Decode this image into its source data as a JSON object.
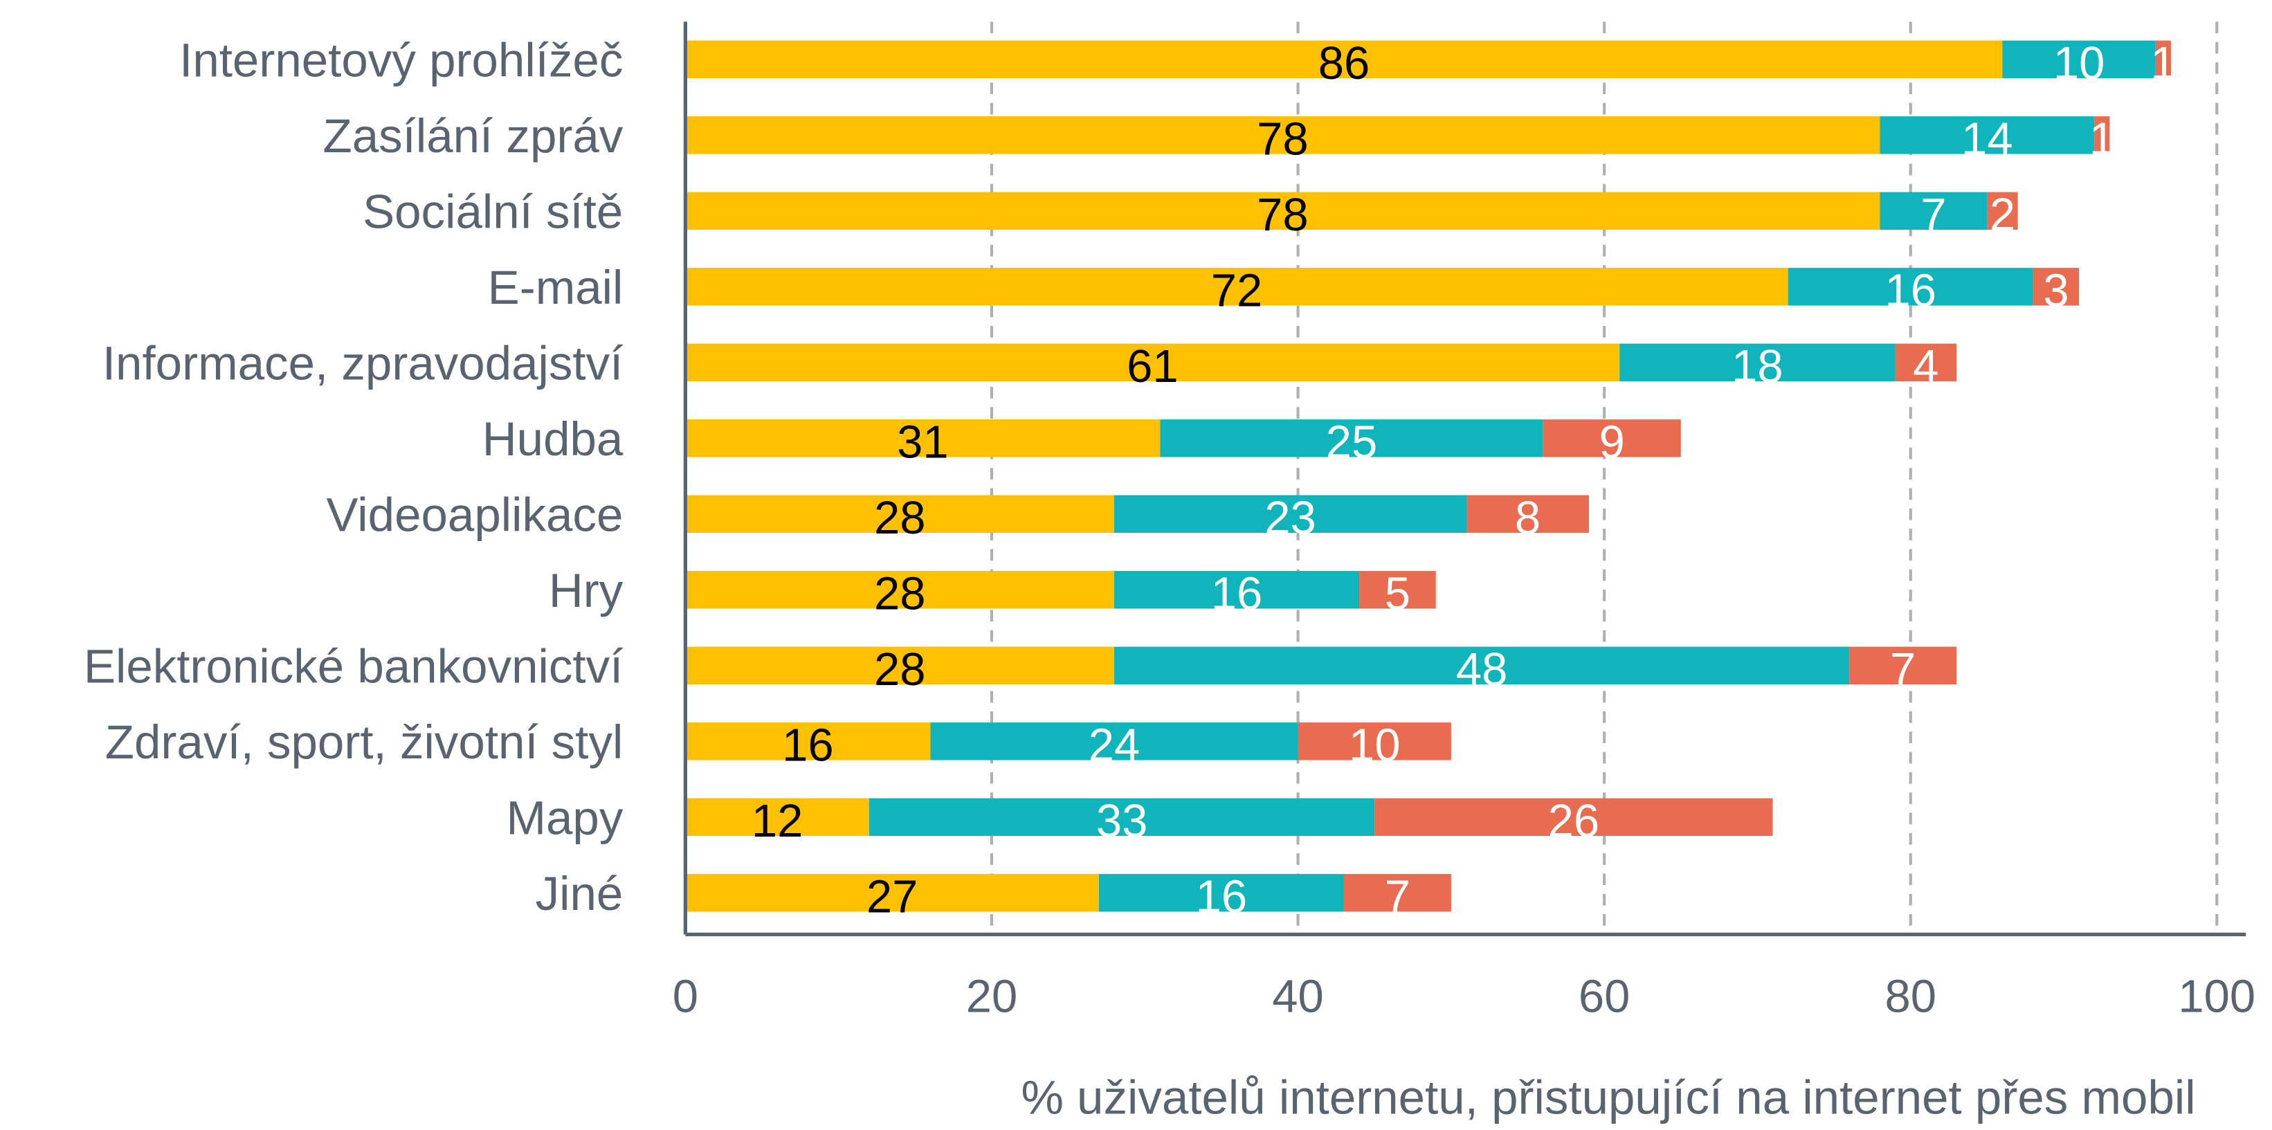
{
  "chart_data": {
    "type": "stacked_barh",
    "xlabel": "% uživatelů internetu, přistupující na internet přes mobil",
    "categories": [
      "Internetový prohlížeč",
      "Zasílání zpráv",
      "Sociální sítě",
      "E-mail",
      "Informace, zpravodajství",
      "Hudba",
      "Videoaplikace",
      "Hry",
      "Elektronické bankovnictví",
      "Zdraví, sport, životní styl",
      "Mapy",
      "Jiné"
    ],
    "series": [
      {
        "color": "#ffc000",
        "label_color": "#000000",
        "values": [
          86,
          78,
          78,
          72,
          61,
          31,
          28,
          28,
          28,
          16,
          12,
          27
        ]
      },
      {
        "color": "#10b5bc",
        "label_color": "#ffffff",
        "values": [
          10,
          14,
          7,
          16,
          18,
          25,
          23,
          16,
          48,
          24,
          33,
          16
        ]
      },
      {
        "color": "#e86c4f",
        "label_color": "#ffffff",
        "values": [
          1,
          1,
          2,
          3,
          4,
          9,
          8,
          5,
          7,
          10,
          26,
          7
        ]
      }
    ],
    "xlim": [
      0,
      100
    ],
    "xticks": [
      0,
      20,
      40,
      60,
      80,
      100
    ],
    "grid": true
  }
}
